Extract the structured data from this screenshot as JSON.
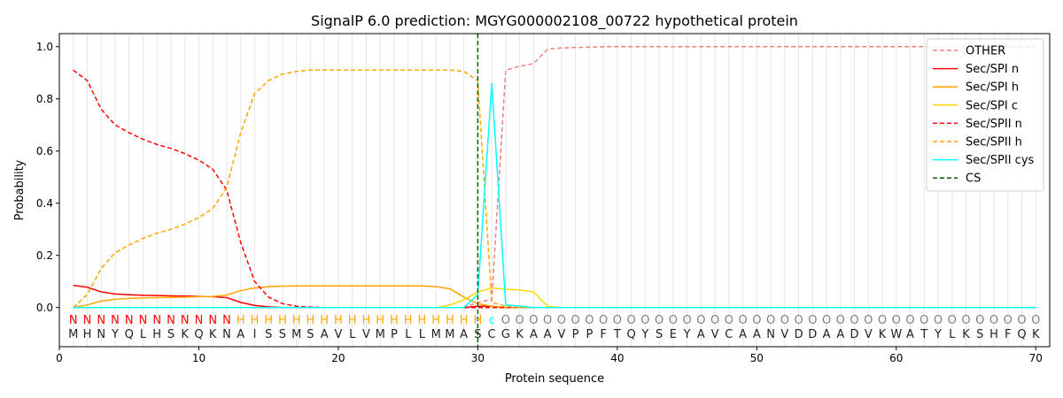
{
  "chart_data": {
    "type": "line",
    "title": "SignalP 6.0 prediction: MGYG000002108_00722 hypothetical protein",
    "xlabel": "Protein sequence",
    "ylabel": "Probability",
    "xlim": [
      0,
      71
    ],
    "ylim": [
      -0.15,
      1.05
    ],
    "xticks": [
      0,
      10,
      20,
      30,
      40,
      50,
      60,
      70
    ],
    "yticks": [
      "0.0",
      "0.2",
      "0.4",
      "0.6",
      "0.8",
      "1.0"
    ],
    "legend_position": "top-right",
    "sequence": "MHNYQLHSKQKNAISSMSAVLVMPLLMMASCGKAAVPPFTQYSEYAVCAANVDDAADVKWATYLKSHFQK",
    "labels": "NNNNNNNNNNNNHHHHHHHHHHHHHHHHHHcOOOOOOOOOOOOOOOOOOOOOOOOOOOOOOOOOOOOOOO",
    "label_colors": {
      "N": "#ff0000",
      "H": "#ffa500",
      "c": "#00ffff",
      "O": "#808080"
    },
    "cs_position": 30,
    "series": [
      {
        "name": "OTHER",
        "color": "#f08080",
        "dash": true,
        "values": [
          0,
          0,
          0,
          0,
          0,
          0,
          0,
          0,
          0,
          0,
          0,
          0,
          0,
          0,
          0,
          0,
          0,
          0,
          0,
          0,
          0,
          0,
          0,
          0,
          0,
          0,
          0,
          0,
          0,
          0.02,
          0.03,
          0.91,
          0.925,
          0.935,
          0.99,
          0.995,
          0.997,
          0.998,
          1,
          1,
          1,
          1,
          1,
          1,
          1,
          1,
          1,
          1,
          1,
          1,
          1,
          1,
          1,
          1,
          1,
          1,
          1,
          1,
          1,
          1,
          1,
          1,
          1,
          1,
          1,
          1,
          1,
          1,
          1,
          1
        ]
      },
      {
        "name": "Sec/SPI n",
        "color": "#ff0000",
        "dash": false,
        "values": [
          0.085,
          0.078,
          0.06,
          0.052,
          0.049,
          0.047,
          0.046,
          0.045,
          0.044,
          0.043,
          0.042,
          0.038,
          0.02,
          0.008,
          0.003,
          0,
          0,
          0,
          0,
          0,
          0,
          0,
          0,
          0,
          0,
          0,
          0,
          0,
          0,
          0.005,
          0.005,
          0,
          0,
          0,
          0,
          0,
          0,
          0,
          0,
          0,
          0,
          0,
          0,
          0,
          0,
          0,
          0,
          0,
          0,
          0,
          0,
          0,
          0,
          0,
          0,
          0,
          0,
          0,
          0,
          0,
          0,
          0,
          0,
          0,
          0,
          0,
          0,
          0,
          0,
          0
        ]
      },
      {
        "name": "Sec/SPI h",
        "color": "#ffa500",
        "dash": false,
        "values": [
          0,
          0.01,
          0.025,
          0.032,
          0.035,
          0.037,
          0.038,
          0.039,
          0.04,
          0.042,
          0.043,
          0.048,
          0.065,
          0.075,
          0.08,
          0.082,
          0.083,
          0.083,
          0.083,
          0.083,
          0.083,
          0.083,
          0.083,
          0.083,
          0.083,
          0.083,
          0.08,
          0.072,
          0.04,
          0.015,
          0.005,
          0,
          0,
          0,
          0,
          0,
          0,
          0,
          0,
          0,
          0,
          0,
          0,
          0,
          0,
          0,
          0,
          0,
          0,
          0,
          0,
          0,
          0,
          0,
          0,
          0,
          0,
          0,
          0,
          0,
          0,
          0,
          0,
          0,
          0,
          0,
          0,
          0,
          0,
          0
        ]
      },
      {
        "name": "Sec/SPI c",
        "color": "#ffd700",
        "dash": false,
        "values": [
          0,
          0,
          0,
          0,
          0,
          0,
          0,
          0,
          0,
          0,
          0,
          0,
          0,
          0,
          0,
          0,
          0,
          0,
          0,
          0,
          0,
          0,
          0,
          0,
          0,
          0,
          0,
          0.01,
          0.03,
          0.06,
          0.075,
          0.07,
          0.068,
          0.06,
          0.005,
          0,
          0,
          0,
          0,
          0,
          0,
          0,
          0,
          0,
          0,
          0,
          0,
          0,
          0,
          0,
          0,
          0,
          0,
          0,
          0,
          0,
          0,
          0,
          0,
          0,
          0,
          0,
          0,
          0,
          0,
          0,
          0,
          0,
          0,
          0
        ]
      },
      {
        "name": "Sec/SPII n",
        "color": "#ff0000",
        "dash": true,
        "values": [
          0.91,
          0.87,
          0.76,
          0.7,
          0.67,
          0.645,
          0.625,
          0.61,
          0.59,
          0.565,
          0.53,
          0.45,
          0.25,
          0.1,
          0.04,
          0.015,
          0.005,
          0.002,
          0,
          0,
          0,
          0,
          0,
          0,
          0,
          0,
          0,
          0,
          0,
          0,
          0,
          0,
          0,
          0,
          0,
          0,
          0,
          0,
          0,
          0,
          0,
          0,
          0,
          0,
          0,
          0,
          0,
          0,
          0,
          0,
          0,
          0,
          0,
          0,
          0,
          0,
          0,
          0,
          0,
          0,
          0,
          0,
          0,
          0,
          0,
          0,
          0,
          0,
          0,
          0
        ]
      },
      {
        "name": "Sec/SPII h",
        "color": "#ffa500",
        "dash": true,
        "values": [
          0,
          0.05,
          0.15,
          0.21,
          0.24,
          0.265,
          0.285,
          0.3,
          0.32,
          0.345,
          0.38,
          0.46,
          0.67,
          0.82,
          0.87,
          0.895,
          0.905,
          0.91,
          0.91,
          0.91,
          0.91,
          0.91,
          0.91,
          0.91,
          0.91,
          0.91,
          0.91,
          0.91,
          0.905,
          0.87,
          0.02,
          0.005,
          0,
          0,
          0,
          0,
          0,
          0,
          0,
          0,
          0,
          0,
          0,
          0,
          0,
          0,
          0,
          0,
          0,
          0,
          0,
          0,
          0,
          0,
          0,
          0,
          0,
          0,
          0,
          0,
          0,
          0,
          0,
          0,
          0,
          0,
          0,
          0,
          0,
          0
        ]
      },
      {
        "name": "Sec/SPII cys",
        "color": "#00ffff",
        "dash": false,
        "values": [
          0,
          0,
          0,
          0,
          0,
          0,
          0,
          0,
          0,
          0,
          0,
          0,
          0,
          0,
          0,
          0,
          0,
          0,
          0,
          0,
          0,
          0,
          0,
          0,
          0,
          0,
          0,
          0,
          0,
          0.05,
          0.86,
          0.01,
          0.005,
          0,
          0,
          0,
          0,
          0,
          0,
          0,
          0,
          0,
          0,
          0,
          0,
          0,
          0,
          0,
          0,
          0,
          0,
          0,
          0,
          0,
          0,
          0,
          0,
          0,
          0,
          0,
          0,
          0,
          0,
          0,
          0,
          0,
          0,
          0,
          0,
          0
        ]
      },
      {
        "name": "CS",
        "color": "#006400",
        "dash": true,
        "values": []
      }
    ]
  }
}
